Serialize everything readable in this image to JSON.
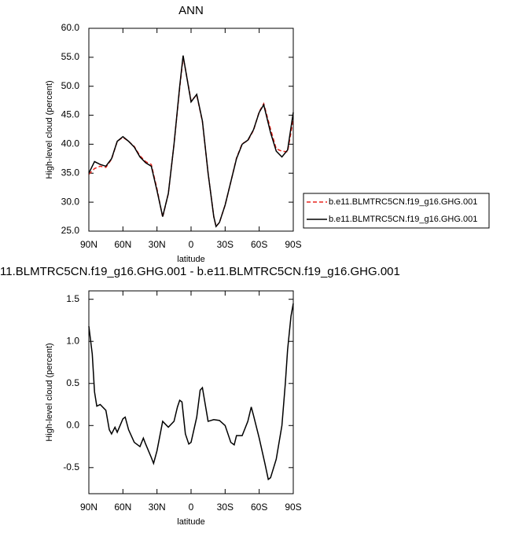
{
  "chart_data": [
    {
      "type": "line",
      "title": "ANN",
      "x_label": "latitude",
      "y_label": "High-level cloud (percent)",
      "x": [
        90,
        85,
        80,
        75,
        70,
        65,
        60,
        55,
        50,
        45,
        40,
        35,
        30,
        25,
        20,
        15,
        10,
        7,
        5,
        0,
        -5,
        -10,
        -15,
        -20,
        -22,
        -25,
        -30,
        -35,
        -40,
        -45,
        -50,
        -55,
        -60,
        -64,
        -70,
        -75,
        -80,
        -85,
        -90
      ],
      "series": [
        {
          "name": "b.e11.BLMTRC5CN.f19_g16.GHG.001",
          "color": "#e8261e",
          "linestyle": "dashed",
          "values": [
            34.8,
            35.8,
            36.2,
            36.0,
            37.4,
            40.5,
            41.2,
            40.5,
            39.6,
            38.0,
            37.0,
            36.5,
            32.3,
            27.4,
            31.5,
            40.0,
            49.7,
            55.0,
            53.0,
            47.5,
            48.5,
            43.9,
            35.0,
            27.5,
            25.8,
            26.5,
            29.5,
            33.5,
            37.6,
            40.1,
            40.6,
            42.4,
            45.6,
            47.0,
            42.6,
            39.2,
            38.8,
            38.7,
            44.3
          ]
        },
        {
          "name": "b.e11.BLMTRC5CN.f19_g16.GHG.001",
          "color": "#000000",
          "linestyle": "solid",
          "values": [
            35.0,
            37.0,
            36.5,
            36.2,
            37.5,
            40.5,
            41.3,
            40.5,
            39.5,
            37.8,
            36.8,
            36.2,
            32.0,
            27.5,
            31.5,
            40.0,
            50.0,
            55.3,
            53.0,
            47.3,
            48.6,
            44.0,
            35.0,
            27.5,
            25.8,
            26.5,
            29.5,
            33.5,
            37.5,
            40.0,
            40.7,
            42.5,
            45.5,
            46.8,
            42.0,
            38.8,
            37.8,
            39.0,
            45.5
          ]
        }
      ],
      "xlim": [
        90,
        -90
      ],
      "xticks": [
        {
          "value": 90,
          "label": "90N"
        },
        {
          "value": 60,
          "label": "60N"
        },
        {
          "value": 30,
          "label": "30N"
        },
        0,
        {
          "value": -30,
          "label": "30S"
        },
        {
          "value": -60,
          "label": "60S"
        },
        {
          "value": -90,
          "label": "90S"
        }
      ],
      "ylim": [
        25,
        60
      ],
      "yticks": [
        {
          "value": 25,
          "label": "25.0"
        },
        {
          "value": 30,
          "label": "30.0"
        },
        {
          "value": 35,
          "label": "35.0"
        },
        {
          "value": 40,
          "label": "40.0"
        },
        {
          "value": 45,
          "label": "45.0"
        },
        {
          "value": 50,
          "label": "50.0"
        },
        {
          "value": 55,
          "label": "55.0"
        },
        {
          "value": 60,
          "label": "60.0"
        }
      ],
      "legend": "right",
      "grid": false
    },
    {
      "type": "line",
      "title": "11.BLMTRC5CN.f19_g16.GHG.001 - b.e11.BLMTRC5CN.f19_g16.GHG.001",
      "x_label": "latitude",
      "y_label": "High-level cloud (percent)",
      "x": [
        90,
        87,
        85,
        83,
        80,
        75,
        72,
        70,
        67,
        65,
        60,
        58,
        55,
        50,
        45,
        42,
        40,
        35,
        33,
        30,
        25,
        20,
        15,
        12,
        10,
        8,
        5,
        2,
        0,
        -5,
        -8,
        -10,
        -15,
        -20,
        -25,
        -30,
        -35,
        -38,
        -40,
        -45,
        -50,
        -53,
        -55,
        -60,
        -65,
        -68,
        -70,
        -75,
        -80,
        -83,
        -85,
        -88,
        -90
      ],
      "values": [
        1.18,
        0.85,
        0.4,
        0.23,
        0.25,
        0.18,
        -0.05,
        -0.1,
        -0.02,
        -0.08,
        0.08,
        0.1,
        -0.05,
        -0.2,
        -0.25,
        -0.15,
        -0.22,
        -0.38,
        -0.45,
        -0.3,
        0.05,
        -0.02,
        0.05,
        0.22,
        0.3,
        0.28,
        -0.1,
        -0.22,
        -0.2,
        0.1,
        0.42,
        0.45,
        0.05,
        0.07,
        0.06,
        0.0,
        -0.2,
        -0.23,
        -0.12,
        -0.12,
        0.05,
        0.22,
        0.12,
        -0.15,
        -0.45,
        -0.64,
        -0.62,
        -0.4,
        0.0,
        0.5,
        0.9,
        1.3,
        1.45
      ],
      "color": "#000000",
      "xlim": [
        90,
        -90
      ],
      "xticks": [
        {
          "value": 90,
          "label": "90N"
        },
        {
          "value": 60,
          "label": "60N"
        },
        {
          "value": 30,
          "label": "30N"
        },
        0,
        {
          "value": -30,
          "label": "30S"
        },
        {
          "value": -60,
          "label": "60S"
        },
        {
          "value": -90,
          "label": "90S"
        }
      ],
      "ylim": [
        -0.81,
        1.6
      ],
      "yticks": [
        -0.5,
        {
          "value": 0,
          "label": "0.0"
        },
        0.5,
        {
          "value": 1,
          "label": "1.0"
        },
        1.5
      ],
      "grid": false
    }
  ]
}
